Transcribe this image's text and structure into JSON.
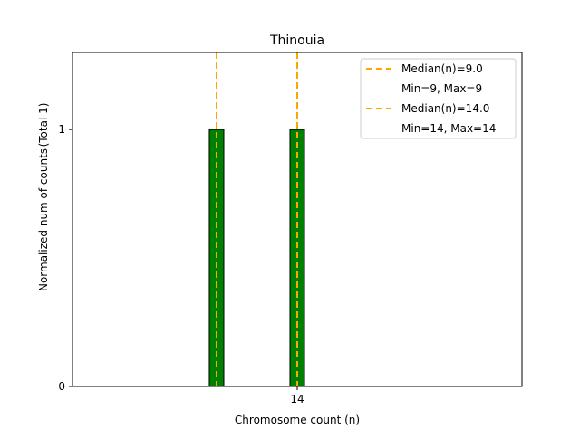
{
  "chart_data": {
    "type": "bar",
    "title": "Thinouia",
    "xlabel": "Chromosome count (n)",
    "ylabel": "Normalized num of counts",
    "ylabel_note": "(Total 1)",
    "xlim": [
      0.07,
      27.93
    ],
    "ylim": [
      0,
      1.3
    ],
    "xticks": [
      14
    ],
    "xtick_labels": [
      "14"
    ],
    "yticks": [
      0,
      1
    ],
    "ytick_labels": [
      "0",
      "1"
    ],
    "grid": false,
    "bar_color": "#008000",
    "median_color": "#FFA500",
    "bar_width": 0.9,
    "bars": [
      {
        "x": 9,
        "value": 1
      },
      {
        "x": 14,
        "value": 1
      }
    ],
    "medians": [
      9,
      14
    ],
    "legend_position": "top-right",
    "legend": [
      {
        "label": "Median(n)=9.0",
        "sub": "Min=9, Max=9"
      },
      {
        "label": "Median(n)=14.0",
        "sub": "Min=14, Max=14"
      }
    ]
  }
}
